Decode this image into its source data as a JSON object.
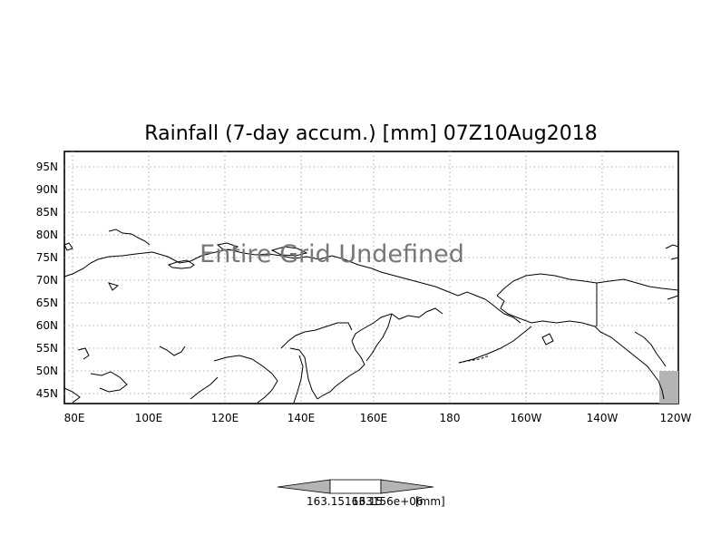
{
  "title": "Rainfall (7-day accum.) [mm] 07Z10Aug2018",
  "overlay_text": "Entire Grid Undefined",
  "lat_labels": [
    "95N",
    "90N",
    "85N",
    "80N",
    "75N",
    "70N",
    "65N",
    "60N",
    "55N",
    "50N",
    "45N"
  ],
  "lon_labels": [
    "80E",
    "100E",
    "120E",
    "140E",
    "160E",
    "180",
    "160W",
    "140W",
    "120W"
  ],
  "colorbar": {
    "label_left": "163.15",
    "label_mid": "163156e+06",
    "label_right": "163.15",
    "unit": "[mm]"
  },
  "colors": {
    "frame": "#000000",
    "grid": "#888888",
    "land_line": "#000000",
    "shaded": "#b4b4b4",
    "colorbar_end": "#b4b4b4"
  }
}
